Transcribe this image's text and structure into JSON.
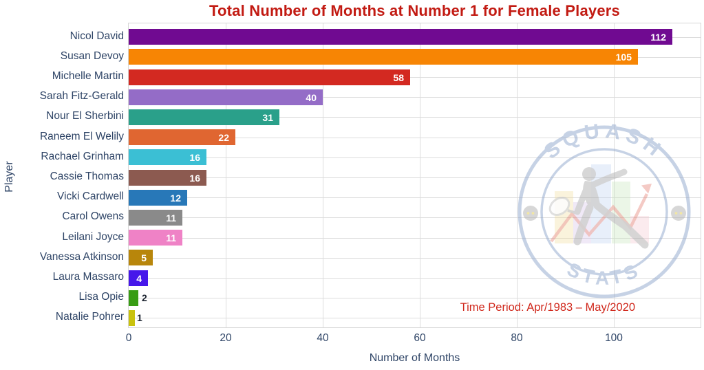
{
  "chart_data": {
    "type": "bar",
    "orientation": "horizontal",
    "title": "Total Number of Months at Number 1 for Female Players",
    "xlabel": "Number of Months",
    "ylabel": "Player",
    "annotation": "Time Period: Apr/1983 – May/2020",
    "xlim": [
      0,
      118
    ],
    "xticks": [
      0,
      20,
      40,
      60,
      80,
      100
    ],
    "grid": true,
    "legend": "none",
    "categories": [
      "Nicol David",
      "Susan Devoy",
      "Michelle Martin",
      "Sarah Fitz-Gerald",
      "Nour El Sherbini",
      "Raneem El Welily",
      "Rachael Grinham",
      "Cassie Thomas",
      "Vicki Cardwell",
      "Carol Owens",
      "Leilani Joyce",
      "Vanessa Atkinson",
      "Laura Massaro",
      "Lisa Opie",
      "Natalie Pohrer"
    ],
    "values": [
      112,
      105,
      58,
      40,
      31,
      22,
      16,
      16,
      12,
      11,
      11,
      5,
      4,
      2,
      1
    ],
    "bar_colors": [
      "#700a91",
      "#f78504",
      "#d32921",
      "#946cc7",
      "#2aa08a",
      "#e06631",
      "#3bbfd4",
      "#8c5a50",
      "#2878b8",
      "#8a8a8a",
      "#ef82c6",
      "#b8860b",
      "#4617ea",
      "#389c14",
      "#c9c20e"
    ]
  },
  "watermark": {
    "top_text": "SQUASH",
    "bottom_text": "STATS"
  },
  "colors": {
    "title": "#c21a12",
    "annotation": "#d0281c",
    "axis_text": "#2e4466",
    "grid": "#dcdcdc",
    "value_inside": "#ffffff",
    "value_outside": "#1c2430",
    "watermark_blue": "#a9b9d6"
  }
}
